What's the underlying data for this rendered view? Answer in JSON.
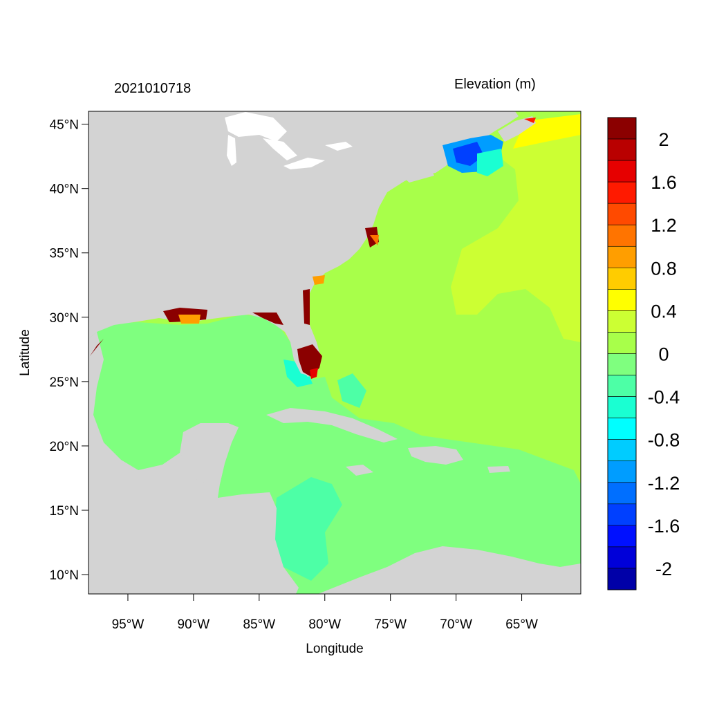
{
  "header": {
    "datetime": "2021010718",
    "variable_title": "Elevation (m)"
  },
  "map": {
    "xlabel": "Longitude",
    "ylabel": "Latitude",
    "extent": {
      "lon": [
        -98,
        -60.5
      ],
      "lat": [
        8.5,
        46
      ]
    },
    "lat_ticks": [
      {
        "value": 45,
        "label": "45°N"
      },
      {
        "value": 40,
        "label": "40°N"
      },
      {
        "value": 35,
        "label": "35°N"
      },
      {
        "value": 30,
        "label": "30°N"
      },
      {
        "value": 25,
        "label": "25°N"
      },
      {
        "value": 20,
        "label": "20°N"
      },
      {
        "value": 15,
        "label": "15°N"
      },
      {
        "value": 10,
        "label": "10°N"
      }
    ],
    "lon_ticks": [
      {
        "value": -95,
        "label": "95°W"
      },
      {
        "value": -90,
        "label": "90°W"
      },
      {
        "value": -85,
        "label": "85°W"
      },
      {
        "value": -80,
        "label": "80°W"
      },
      {
        "value": -75,
        "label": "75°W"
      },
      {
        "value": -70,
        "label": "70°W"
      },
      {
        "value": -65,
        "label": "65°W"
      }
    ],
    "land_color": "#d3d3d3"
  },
  "colorbar": {
    "colors_top_to_bottom": [
      "#8b0000",
      "#b90000",
      "#e60000",
      "#ff1a00",
      "#ff4a00",
      "#ff7400",
      "#ff9e00",
      "#ffcc00",
      "#ffff00",
      "#ccff33",
      "#a8ff4a",
      "#7fff7f",
      "#4dffa6",
      "#1affd2",
      "#00ffff",
      "#00ccff",
      "#009dff",
      "#006fff",
      "#0040ff",
      "#0010ff",
      "#0000d9",
      "#0000a8"
    ],
    "labels": [
      {
        "value": 2.0,
        "text": "2"
      },
      {
        "value": 1.6,
        "text": "1.6"
      },
      {
        "value": 1.2,
        "text": "1.2"
      },
      {
        "value": 0.8,
        "text": "0.8"
      },
      {
        "value": 0.4,
        "text": "0.4"
      },
      {
        "value": 0.0,
        "text": "0"
      },
      {
        "value": -0.4,
        "text": "-0.4"
      },
      {
        "value": -0.8,
        "text": "-0.8"
      },
      {
        "value": -1.2,
        "text": "-1.2"
      },
      {
        "value": -1.6,
        "text": "-1.6"
      },
      {
        "value": -2.0,
        "text": "-2"
      }
    ]
  }
}
